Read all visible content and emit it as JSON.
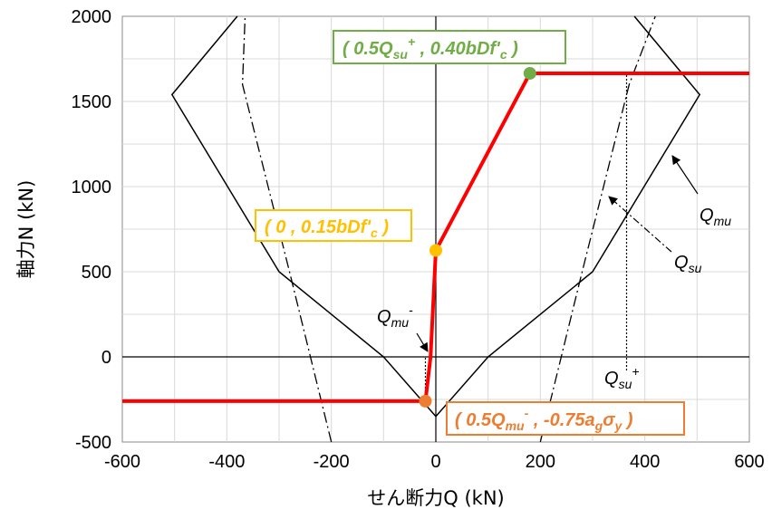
{
  "chart_data": {
    "type": "line",
    "xlabel": "せん断力Q (kN)",
    "ylabel": "軸力N (kN)",
    "xlim": [
      -600,
      600
    ],
    "ylim": [
      -500,
      2000
    ],
    "x_ticks": [
      "-600",
      "-400",
      "-200",
      "0",
      "200",
      "400",
      "600"
    ],
    "y_ticks": [
      "-500",
      "0",
      "500",
      "1000",
      "1500",
      "2000"
    ],
    "grid": true,
    "colors": {
      "main_path": "#ff0000",
      "point_upper": "#70ad47",
      "point_mid": "#ffc000",
      "point_lower": "#ed7d31",
      "curves": "#000000",
      "grid": "#d9d9d9"
    },
    "series": [
      {
        "key": "qmu_pos",
        "style": "solid",
        "x": [
          0,
          100,
          300,
          505,
          380
        ],
        "y": [
          -350,
          0,
          500,
          1540,
          2000
        ]
      },
      {
        "key": "qmu_neg",
        "style": "solid",
        "x": [
          0,
          -100,
          -300,
          -505,
          -380
        ],
        "y": [
          -350,
          0,
          500,
          1540,
          2000
        ]
      },
      {
        "key": "qsu_pos",
        "style": "dash-dot",
        "x": [
          200,
          280,
          370,
          420
        ],
        "y": [
          -500,
          500,
          1600,
          2000
        ]
      },
      {
        "key": "qsu_neg",
        "style": "dash-dot",
        "x": [
          -200,
          -280,
          -370,
          -365
        ],
        "y": [
          -500,
          500,
          1600,
          2000
        ]
      },
      {
        "key": "qsu_plus_line",
        "style": "dotted",
        "x": [
          365,
          365
        ],
        "y": [
          -80,
          1660
        ]
      },
      {
        "key": "qmu_minus_line",
        "style": "dotted",
        "x": [
          -20,
          -20
        ],
        "y": [
          -250,
          0
        ]
      },
      {
        "key": "main_path",
        "style": "bold",
        "x": [
          -600,
          -20,
          -10,
          0,
          180,
          600
        ],
        "y": [
          -260,
          -260,
          0,
          625,
          1665,
          1665
        ]
      }
    ],
    "points": [
      {
        "x": 180,
        "y": 1665,
        "color": "#70ad47",
        "label_main": "( 0.5",
        "label_var": "Q",
        "label_sub": "su",
        "label_sup": "+",
        "label_rest": " , 0.40",
        "label_var2": "bDf'",
        "label_sub2": "c",
        "label_end": " )"
      },
      {
        "x": 0,
        "y": 625,
        "color": "#ffc000",
        "label_main": "( 0 , 0.15",
        "label_var": "bDf'",
        "label_sub": "c",
        "label_end": " )"
      },
      {
        "x": -20,
        "y": -260,
        "color": "#ed7d31",
        "label_main": "( 0.5",
        "label_var": "Q",
        "label_sub": "mu",
        "label_sup": "-",
        "label_rest": " , -0.75",
        "label_var2": "a",
        "label_sub2": "g",
        "label_var3": "σ",
        "label_sub3": "y",
        "label_end": " )"
      }
    ],
    "annotations": {
      "qmu": {
        "var": "Q",
        "sub": "mu"
      },
      "qsu": {
        "var": "Q",
        "sub": "su"
      },
      "qsu_plus": {
        "var": "Q",
        "sub": "su",
        "sup": "+"
      },
      "qmu_minus": {
        "var": "Q",
        "sub": "mu",
        "sup": "-"
      }
    }
  }
}
